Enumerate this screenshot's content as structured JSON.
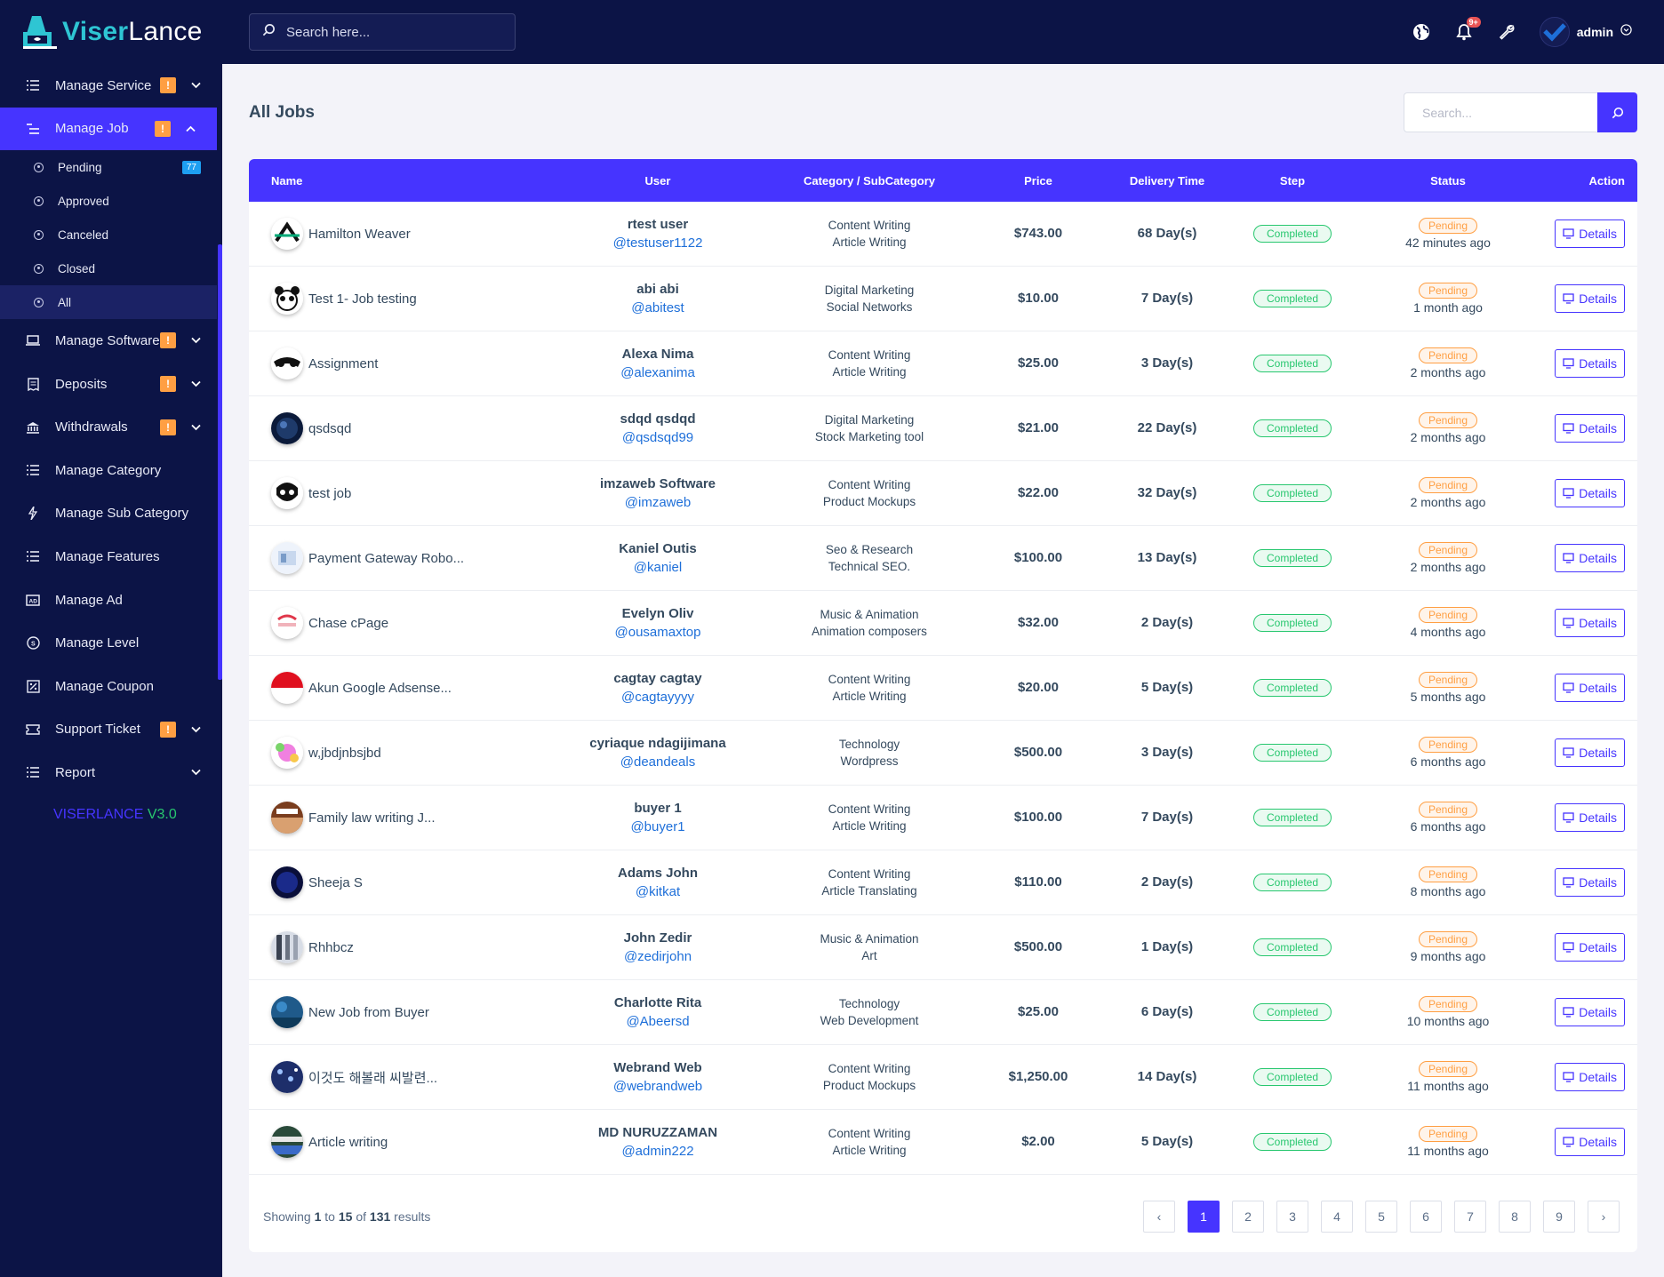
{
  "brand": {
    "part1": "Viser",
    "part2": "Lance",
    "version_name": "VISERLANCE",
    "version_num": "V3.0"
  },
  "sidebar": {
    "items": [
      {
        "label": "Manage Service",
        "icon": "list-icon",
        "warn": "!",
        "caret": "down"
      },
      {
        "label": "Manage Job",
        "icon": "menu-icon",
        "warn": "!",
        "caret": "up",
        "active": true
      },
      {
        "label": "Manage Software",
        "icon": "laptop-icon",
        "warn": "!",
        "caret": "down"
      },
      {
        "label": "Deposits",
        "icon": "receipt-icon",
        "warn": "!",
        "caret": "down"
      },
      {
        "label": "Withdrawals",
        "icon": "bank-icon",
        "warn": "!",
        "caret": "down"
      },
      {
        "label": "Manage Category",
        "icon": "list-icon"
      },
      {
        "label": "Manage Sub Category",
        "icon": "bolt-icon"
      },
      {
        "label": "Manage Features",
        "icon": "list-icon"
      },
      {
        "label": "Manage Ad",
        "icon": "ad-icon"
      },
      {
        "label": "Manage Level",
        "icon": "level-icon"
      },
      {
        "label": "Manage Coupon",
        "icon": "coupon-icon"
      },
      {
        "label": "Support Ticket",
        "icon": "ticket-icon",
        "warn": "!",
        "caret": "down"
      },
      {
        "label": "Report",
        "icon": "list-icon",
        "caret": "down"
      }
    ],
    "job_sub": [
      {
        "label": "Pending",
        "badge": "77"
      },
      {
        "label": "Approved"
      },
      {
        "label": "Canceled"
      },
      {
        "label": "Closed"
      },
      {
        "label": "All",
        "active": true
      }
    ]
  },
  "topbar": {
    "search_placeholder": "Search here...",
    "notif_count": "9+",
    "admin_name": "admin"
  },
  "page": {
    "title": "All Jobs",
    "search_placeholder": "Search..."
  },
  "table": {
    "headers": {
      "name": "Name",
      "user": "User",
      "category": "Category / SubCategory",
      "price": "Price",
      "delivery": "Delivery Time",
      "step": "Step",
      "status": "Status",
      "action": "Action"
    },
    "rows": [
      {
        "name": "Hamilton Weaver",
        "user": "rtest user",
        "handle": "@testuser1122",
        "cat": "Content Writing",
        "sub": "Article Writing",
        "price": "$743.00",
        "delivery": "68 Day(s)",
        "step": "Completed",
        "status": "Pending",
        "ago": "42 minutes ago",
        "action": "Details"
      },
      {
        "name": "Test 1- Job testing",
        "user": "abi abi",
        "handle": "@abitest",
        "cat": "Digital Marketing",
        "sub": "Social Networks",
        "price": "$10.00",
        "delivery": "7 Day(s)",
        "step": "Completed",
        "status": "Pending",
        "ago": "1 month ago",
        "action": "Details"
      },
      {
        "name": "Assignment",
        "user": "Alexa Nima",
        "handle": "@alexanima",
        "cat": "Content Writing",
        "sub": "Article Writing",
        "price": "$25.00",
        "delivery": "3 Day(s)",
        "step": "Completed",
        "status": "Pending",
        "ago": "2 months ago",
        "action": "Details"
      },
      {
        "name": "qsdsqd",
        "user": "sdqd qsdqd",
        "handle": "@qsdsqd99",
        "cat": "Digital Marketing",
        "sub": "Stock Marketing tool",
        "price": "$21.00",
        "delivery": "22 Day(s)",
        "step": "Completed",
        "status": "Pending",
        "ago": "2 months ago",
        "action": "Details"
      },
      {
        "name": "test job",
        "user": "imzaweb Software",
        "handle": "@imzaweb",
        "cat": "Content Writing",
        "sub": "Product Mockups",
        "price": "$22.00",
        "delivery": "32 Day(s)",
        "step": "Completed",
        "status": "Pending",
        "ago": "2 months ago",
        "action": "Details"
      },
      {
        "name": "Payment Gateway Robo...",
        "user": "Kaniel Outis",
        "handle": "@kaniel",
        "cat": "Seo & Research",
        "sub": "Technical SEO.",
        "price": "$100.00",
        "delivery": "13 Day(s)",
        "step": "Completed",
        "status": "Pending",
        "ago": "2 months ago",
        "action": "Details"
      },
      {
        "name": "Chase cPage",
        "user": "Evelyn Oliv",
        "handle": "@ousamaxtop",
        "cat": "Music & Animation",
        "sub": "Animation composers",
        "price": "$32.00",
        "delivery": "2 Day(s)",
        "step": "Completed",
        "status": "Pending",
        "ago": "4 months ago",
        "action": "Details"
      },
      {
        "name": "Akun Google Adsense...",
        "user": "cagtay cagtay",
        "handle": "@cagtayyyy",
        "cat": "Content Writing",
        "sub": "Article Writing",
        "price": "$20.00",
        "delivery": "5 Day(s)",
        "step": "Completed",
        "status": "Pending",
        "ago": "5 months ago",
        "action": "Details"
      },
      {
        "name": "w,jbdjnbsjbd",
        "user": "cyriaque ndagijimana",
        "handle": "@deandeals",
        "cat": "Technology",
        "sub": "Wordpress",
        "price": "$500.00",
        "delivery": "3 Day(s)",
        "step": "Completed",
        "status": "Pending",
        "ago": "6 months ago",
        "action": "Details"
      },
      {
        "name": "Family law writing J...",
        "user": "buyer 1",
        "handle": "@buyer1",
        "cat": "Content Writing",
        "sub": "Article Writing",
        "price": "$100.00",
        "delivery": "7 Day(s)",
        "step": "Completed",
        "status": "Pending",
        "ago": "6 months ago",
        "action": "Details"
      },
      {
        "name": "Sheeja S",
        "user": "Adams John",
        "handle": "@kitkat",
        "cat": "Content Writing",
        "sub": "Article Translating",
        "price": "$110.00",
        "delivery": "2 Day(s)",
        "step": "Completed",
        "status": "Pending",
        "ago": "8 months ago",
        "action": "Details"
      },
      {
        "name": "Rhhbcz",
        "user": "John Zedir",
        "handle": "@zedirjohn",
        "cat": "Music & Animation",
        "sub": "Art",
        "price": "$500.00",
        "delivery": "1 Day(s)",
        "step": "Completed",
        "status": "Pending",
        "ago": "9 months ago",
        "action": "Details"
      },
      {
        "name": "New Job from Buyer",
        "user": "Charlotte Rita",
        "handle": "@Abeersd",
        "cat": "Technology",
        "sub": "Web Development",
        "price": "$25.00",
        "delivery": "6 Day(s)",
        "step": "Completed",
        "status": "Pending",
        "ago": "10 months ago",
        "action": "Details"
      },
      {
        "name": "이것도 해볼래 씨발련...",
        "user": "Webrand Web",
        "handle": "@webrandweb",
        "cat": "Content Writing",
        "sub": "Product Mockups",
        "price": "$1,250.00",
        "delivery": "14 Day(s)",
        "step": "Completed",
        "status": "Pending",
        "ago": "11 months ago",
        "action": "Details"
      },
      {
        "name": "Article writing",
        "user": "MD NURUZZAMAN",
        "handle": "@admin222",
        "cat": "Content Writing",
        "sub": "Article Writing",
        "price": "$2.00",
        "delivery": "5 Day(s)",
        "step": "Completed",
        "status": "Pending",
        "ago": "11 months ago",
        "action": "Details"
      }
    ]
  },
  "footer": {
    "showing_prefix": "Showing",
    "from": "1",
    "to_word": "to",
    "to": "15",
    "of_word": "of",
    "total": "131",
    "results_word": "results"
  },
  "pagination": {
    "prev": "‹",
    "next": "›",
    "pages": [
      "1",
      "2",
      "3",
      "4",
      "5",
      "6",
      "7",
      "8",
      "9"
    ],
    "current": "1"
  },
  "colors": {
    "accent": "#4634ff",
    "sidebar": "#0c1446",
    "success": "#28c76f",
    "warning": "#ff9f43",
    "link": "#1e6fd9"
  }
}
